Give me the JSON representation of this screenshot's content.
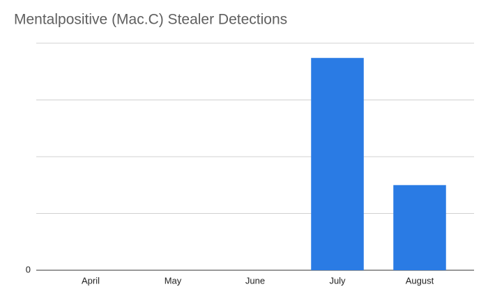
{
  "chart_data": {
    "type": "bar",
    "title": "Mentalpositive (Mac.C) Stealer Detections",
    "categories": [
      "April",
      "May",
      "June",
      "July",
      "August"
    ],
    "values": [
      0,
      0,
      0,
      3.74,
      1.5
    ],
    "color": "#2a7be4",
    "ylim": [
      0,
      4
    ],
    "yticks": [
      0
    ],
    "ygrid": [
      1,
      2,
      3,
      4
    ],
    "grid": true
  }
}
